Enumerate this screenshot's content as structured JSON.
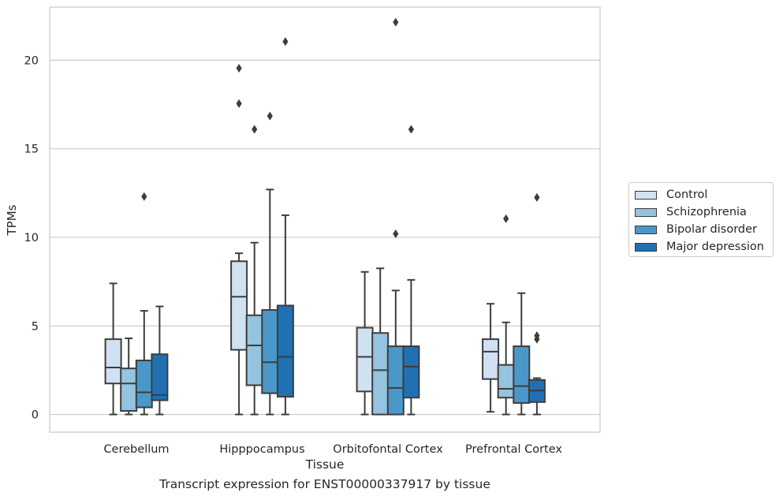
{
  "caption": "Transcript expression for ENST00000337917 by tissue",
  "chart_data": {
    "type": "box",
    "xlabel": "Tissue",
    "ylabel": "TPMs",
    "ylim": [
      -1,
      23
    ],
    "yticks": [
      0,
      5,
      10,
      15,
      20
    ],
    "grid": "horizontal",
    "legend_position": "right",
    "categories": [
      "Cerebellum",
      "Hipppocampus",
      "Orbitofontal Cortex",
      "Prefrontal Cortex"
    ],
    "series": [
      {
        "name": "Control",
        "color": "#d0e1f2",
        "boxes": [
          {
            "whislo": 0.0,
            "q1": 1.75,
            "median": 2.65,
            "q3": 4.25,
            "whishi": 7.4,
            "fliers": []
          },
          {
            "whislo": 0.0,
            "q1": 3.65,
            "median": 6.65,
            "q3": 8.65,
            "whishi": 9.1,
            "fliers": [
              17.55,
              19.55
            ]
          },
          {
            "whislo": 0.0,
            "q1": 1.3,
            "median": 3.25,
            "q3": 4.9,
            "whishi": 8.05,
            "fliers": []
          },
          {
            "whislo": 0.15,
            "q1": 2.0,
            "median": 3.55,
            "q3": 4.25,
            "whishi": 6.25,
            "fliers": []
          }
        ]
      },
      {
        "name": "Schizophrenia",
        "color": "#94c4df",
        "boxes": [
          {
            "whislo": 0.0,
            "q1": 0.2,
            "median": 1.75,
            "q3": 2.6,
            "whishi": 4.3,
            "fliers": []
          },
          {
            "whislo": 0.0,
            "q1": 1.65,
            "median": 3.9,
            "q3": 5.6,
            "whishi": 9.7,
            "fliers": [
              16.1
            ]
          },
          {
            "whislo": 0.0,
            "q1": 0.0,
            "median": 2.5,
            "q3": 4.6,
            "whishi": 8.25,
            "fliers": []
          },
          {
            "whislo": 0.0,
            "q1": 0.95,
            "median": 1.45,
            "q3": 2.8,
            "whishi": 5.2,
            "fliers": [
              11.05
            ]
          }
        ]
      },
      {
        "name": "Bipolar disorder",
        "color": "#4a98c9",
        "boxes": [
          {
            "whislo": 0.0,
            "q1": 0.4,
            "median": 1.25,
            "q3": 3.05,
            "whishi": 5.85,
            "fliers": [
              12.3
            ]
          },
          {
            "whislo": 0.0,
            "q1": 1.2,
            "median": 2.95,
            "q3": 5.9,
            "whishi": 12.7,
            "fliers": [
              16.85
            ]
          },
          {
            "whislo": 0.0,
            "q1": 0.0,
            "median": 1.5,
            "q3": 3.85,
            "whishi": 7.0,
            "fliers": [
              10.2,
              22.15
            ]
          },
          {
            "whislo": 0.0,
            "q1": 0.65,
            "median": 1.6,
            "q3": 3.85,
            "whishi": 6.85,
            "fliers": []
          }
        ]
      },
      {
        "name": "Major depression",
        "color": "#2070b4",
        "boxes": [
          {
            "whislo": 0.0,
            "q1": 0.8,
            "median": 1.1,
            "q3": 3.4,
            "whishi": 6.1,
            "fliers": []
          },
          {
            "whislo": 0.0,
            "q1": 1.0,
            "median": 3.25,
            "q3": 6.15,
            "whishi": 11.25,
            "fliers": [
              21.05
            ]
          },
          {
            "whislo": 0.0,
            "q1": 0.95,
            "median": 2.7,
            "q3": 3.85,
            "whishi": 7.6,
            "fliers": [
              16.1
            ]
          },
          {
            "whislo": 0.0,
            "q1": 0.7,
            "median": 1.35,
            "q3": 1.95,
            "whishi": 2.05,
            "fliers": [
              4.25,
              4.45,
              12.25
            ]
          }
        ]
      }
    ]
  }
}
